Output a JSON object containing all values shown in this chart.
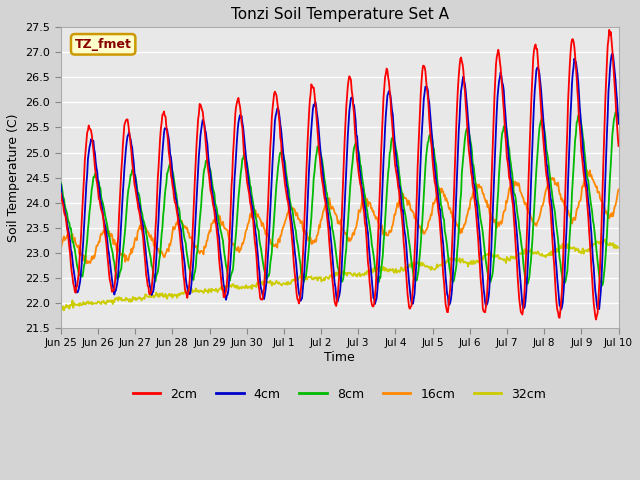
{
  "title": "Tonzi Soil Temperature Set A",
  "xlabel": "Time",
  "ylabel": "Soil Temperature (C)",
  "ylim": [
    21.5,
    27.5
  ],
  "legend_label": "TZ_fmet",
  "legend_bg": "#ffffcc",
  "legend_border": "#cc9900",
  "series": {
    "2cm": {
      "color": "#ff0000",
      "lw": 1.3
    },
    "4cm": {
      "color": "#0000cc",
      "lw": 1.3
    },
    "8cm": {
      "color": "#00bb00",
      "lw": 1.3
    },
    "16cm": {
      "color": "#ff8800",
      "lw": 1.3
    },
    "32cm": {
      "color": "#cccc00",
      "lw": 1.3
    }
  },
  "xtick_labels": [
    "Jun 25",
    "Jun 26",
    "Jun 27",
    "Jun 28",
    "Jun 29",
    "Jun 30",
    "Jul 1",
    "Jul 2",
    "Jul 3",
    "Jul 4",
    "Jul 5",
    "Jul 6",
    "Jul 7",
    "Jul 8",
    "Jul 9",
    "Jul 10"
  ],
  "ytick_vals": [
    21.5,
    22.0,
    22.5,
    23.0,
    23.5,
    24.0,
    24.5,
    25.0,
    25.5,
    26.0,
    26.5,
    27.0,
    27.5
  ],
  "n_days": 15,
  "pts_per_day": 48
}
